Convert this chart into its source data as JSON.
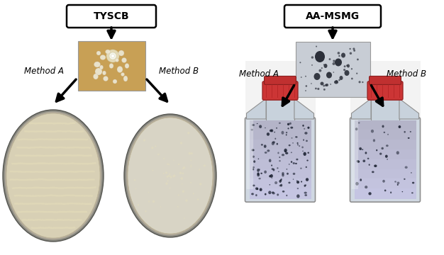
{
  "title_left": "TYSCB",
  "title_right": "AA-MSMG",
  "label_method_a_left": "Method A",
  "label_method_b_left": "Method B",
  "label_method_a_right": "Method A",
  "label_method_b_right": "Method B",
  "bg_color": "#ffffff",
  "box_color": "#ffffff",
  "box_edge_color": "#000000",
  "title_fontsize": 10,
  "label_fontsize": 8.5,
  "fig_width": 6.26,
  "fig_height": 3.6,
  "dpi": 100
}
